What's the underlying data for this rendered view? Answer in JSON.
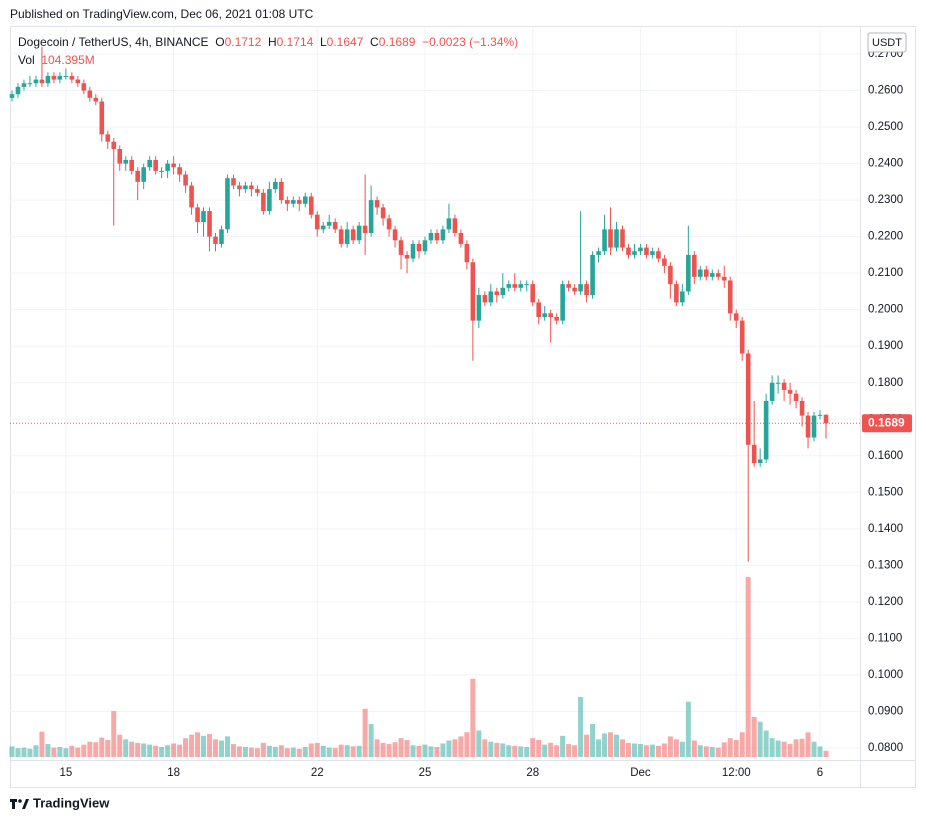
{
  "published": "Published on TradingView.com, Dec 06, 2021 01:08 UTC",
  "footer": "TradingView",
  "chart_data": {
    "type": "candlestick",
    "title": "Dogecoin / TetherUS, 4h, BINANCE",
    "currency": "USDT",
    "ohlc_letters": [
      "O",
      "H",
      "L",
      "C"
    ],
    "change": "−0.0023 (−1.34%)",
    "volume_name": "Vol",
    "volume_label": "104.395M",
    "current_label": "0.1689",
    "up_color": "#26a69a",
    "down_color": "#ef5350",
    "open": [
      0.258,
      0.259,
      0.261,
      0.262,
      0.262,
      0.263,
      0.262,
      0.264,
      0.263,
      0.264,
      0.264,
      0.263,
      0.262,
      0.26,
      0.258,
      0.257,
      0.248,
      0.246,
      0.244,
      0.24,
      0.241,
      0.238,
      0.235,
      0.239,
      0.241,
      0.238,
      0.238,
      0.24,
      0.239,
      0.237,
      0.234,
      0.228,
      0.224,
      0.227,
      0.22,
      0.218,
      0.222,
      0.236,
      0.234,
      0.233,
      0.234,
      0.233,
      0.232,
      0.227,
      0.233,
      0.235,
      0.23,
      0.229,
      0.23,
      0.229,
      0.231,
      0.226,
      0.222,
      0.223,
      0.224,
      0.222,
      0.218,
      0.222,
      0.219,
      0.223,
      0.221,
      0.23,
      0.228,
      0.225,
      0.222,
      0.219,
      0.215,
      0.214,
      0.218,
      0.216,
      0.219,
      0.221,
      0.219,
      0.222,
      0.225,
      0.221,
      0.218,
      0.213,
      0.197,
      0.204,
      0.202,
      0.205,
      0.204,
      0.206,
      0.207,
      0.206,
      0.207,
      0.207,
      0.202,
      0.198,
      0.199,
      0.198,
      0.197,
      0.207,
      0.206,
      0.205,
      0.207,
      0.204,
      0.215,
      0.216,
      0.222,
      0.217,
      0.222,
      0.217,
      0.215,
      0.216,
      0.217,
      0.215,
      0.216,
      0.214,
      0.212,
      0.207,
      0.202,
      0.205,
      0.215,
      0.209,
      0.211,
      0.209,
      0.21,
      0.209,
      0.208,
      0.199,
      0.197,
      0.188,
      0.163,
      0.158,
      0.159,
      0.175,
      0.18,
      0.18,
      0.178,
      0.177,
      0.175,
      0.171,
      0.165,
      0.171,
      0.1712
    ],
    "high": [
      0.26,
      0.262,
      0.263,
      0.264,
      0.264,
      0.272,
      0.265,
      0.265,
      0.265,
      0.266,
      0.265,
      0.264,
      0.263,
      0.261,
      0.259,
      0.258,
      0.249,
      0.247,
      0.245,
      0.242,
      0.242,
      0.239,
      0.24,
      0.242,
      0.242,
      0.239,
      0.241,
      0.242,
      0.24,
      0.238,
      0.235,
      0.229,
      0.228,
      0.228,
      0.221,
      0.223,
      0.237,
      0.237,
      0.235,
      0.235,
      0.235,
      0.234,
      0.233,
      0.235,
      0.236,
      0.236,
      0.231,
      0.231,
      0.231,
      0.232,
      0.232,
      0.227,
      0.224,
      0.226,
      0.225,
      0.223,
      0.224,
      0.223,
      0.224,
      0.237,
      0.234,
      0.231,
      0.229,
      0.226,
      0.223,
      0.22,
      0.216,
      0.219,
      0.219,
      0.22,
      0.222,
      0.222,
      0.223,
      0.229,
      0.226,
      0.222,
      0.219,
      0.214,
      0.206,
      0.205,
      0.207,
      0.206,
      0.21,
      0.208,
      0.21,
      0.208,
      0.208,
      0.208,
      0.203,
      0.201,
      0.2,
      0.199,
      0.208,
      0.208,
      0.207,
      0.227,
      0.208,
      0.216,
      0.217,
      0.226,
      0.228,
      0.224,
      0.223,
      0.218,
      0.218,
      0.218,
      0.218,
      0.217,
      0.217,
      0.215,
      0.213,
      0.208,
      0.207,
      0.223,
      0.216,
      0.212,
      0.212,
      0.211,
      0.211,
      0.212,
      0.209,
      0.2,
      0.198,
      0.189,
      0.175,
      0.162,
      0.177,
      0.182,
      0.182,
      0.181,
      0.18,
      0.178,
      0.176,
      0.172,
      0.172,
      0.1725,
      0.1714
    ],
    "low": [
      0.257,
      0.258,
      0.26,
      0.261,
      0.261,
      0.261,
      0.261,
      0.262,
      0.262,
      0.263,
      0.262,
      0.261,
      0.259,
      0.257,
      0.256,
      0.246,
      0.244,
      0.223,
      0.238,
      0.238,
      0.237,
      0.23,
      0.233,
      0.238,
      0.237,
      0.236,
      0.236,
      0.237,
      0.235,
      0.232,
      0.226,
      0.221,
      0.22,
      0.216,
      0.216,
      0.217,
      0.221,
      0.233,
      0.231,
      0.232,
      0.231,
      0.231,
      0.226,
      0.226,
      0.232,
      0.229,
      0.227,
      0.228,
      0.227,
      0.228,
      0.225,
      0.22,
      0.221,
      0.222,
      0.221,
      0.217,
      0.217,
      0.218,
      0.218,
      0.215,
      0.22,
      0.226,
      0.223,
      0.22,
      0.217,
      0.211,
      0.21,
      0.213,
      0.214,
      0.215,
      0.218,
      0.218,
      0.218,
      0.221,
      0.22,
      0.217,
      0.211,
      0.186,
      0.195,
      0.201,
      0.201,
      0.202,
      0.203,
      0.205,
      0.205,
      0.205,
      0.205,
      0.201,
      0.196,
      0.197,
      0.191,
      0.196,
      0.196,
      0.205,
      0.204,
      0.204,
      0.202,
      0.203,
      0.213,
      0.215,
      0.215,
      0.216,
      0.216,
      0.214,
      0.214,
      0.215,
      0.214,
      0.214,
      0.213,
      0.21,
      0.203,
      0.201,
      0.201,
      0.204,
      0.207,
      0.208,
      0.208,
      0.208,
      0.208,
      0.206,
      0.197,
      0.195,
      0.186,
      0.131,
      0.157,
      0.157,
      0.158,
      0.174,
      0.177,
      0.175,
      0.174,
      0.173,
      0.168,
      0.162,
      0.164,
      0.17,
      0.1647
    ],
    "close": [
      0.259,
      0.261,
      0.262,
      0.262,
      0.263,
      0.262,
      0.264,
      0.263,
      0.264,
      0.264,
      0.263,
      0.262,
      0.26,
      0.258,
      0.257,
      0.248,
      0.246,
      0.244,
      0.24,
      0.241,
      0.238,
      0.235,
      0.239,
      0.241,
      0.238,
      0.238,
      0.24,
      0.239,
      0.237,
      0.234,
      0.228,
      0.224,
      0.227,
      0.22,
      0.218,
      0.222,
      0.236,
      0.234,
      0.233,
      0.234,
      0.233,
      0.232,
      0.227,
      0.233,
      0.235,
      0.23,
      0.229,
      0.23,
      0.229,
      0.231,
      0.226,
      0.222,
      0.223,
      0.224,
      0.222,
      0.218,
      0.222,
      0.219,
      0.223,
      0.221,
      0.23,
      0.228,
      0.225,
      0.222,
      0.219,
      0.215,
      0.214,
      0.218,
      0.216,
      0.219,
      0.221,
      0.219,
      0.222,
      0.225,
      0.221,
      0.218,
      0.213,
      0.197,
      0.204,
      0.202,
      0.205,
      0.204,
      0.206,
      0.207,
      0.206,
      0.207,
      0.207,
      0.202,
      0.198,
      0.199,
      0.198,
      0.197,
      0.207,
      0.206,
      0.205,
      0.207,
      0.204,
      0.215,
      0.216,
      0.222,
      0.217,
      0.222,
      0.217,
      0.215,
      0.216,
      0.217,
      0.215,
      0.216,
      0.214,
      0.212,
      0.207,
      0.202,
      0.205,
      0.215,
      0.209,
      0.211,
      0.209,
      0.21,
      0.209,
      0.208,
      0.199,
      0.197,
      0.188,
      0.163,
      0.158,
      0.159,
      0.175,
      0.18,
      0.18,
      0.178,
      0.177,
      0.175,
      0.171,
      0.165,
      0.171,
      0.1712,
      0.1689
    ],
    "volume": [
      180,
      150,
      160,
      140,
      200,
      430,
      220,
      160,
      170,
      150,
      190,
      160,
      210,
      260,
      250,
      330,
      290,
      780,
      380,
      300,
      260,
      240,
      230,
      210,
      190,
      170,
      200,
      230,
      210,
      320,
      380,
      420,
      360,
      390,
      300,
      280,
      350,
      220,
      180,
      170,
      160,
      150,
      240,
      190,
      170,
      200,
      150,
      160,
      140,
      170,
      230,
      240,
      190,
      160,
      150,
      210,
      200,
      180,
      190,
      820,
      560,
      300,
      240,
      220,
      250,
      320,
      290,
      200,
      190,
      210,
      180,
      170,
      230,
      280,
      300,
      350,
      420,
      1330,
      450,
      300,
      260,
      240,
      230,
      200,
      190,
      180,
      170,
      320,
      290,
      210,
      240,
      200,
      360,
      220,
      200,
      1020,
      380,
      560,
      300,
      400,
      420,
      380,
      300,
      240,
      230,
      220,
      200,
      210,
      190,
      230,
      350,
      300,
      260,
      940,
      280,
      200,
      180,
      170,
      160,
      250,
      320,
      290,
      420,
      3060,
      680,
      600,
      450,
      320,
      280,
      260,
      220,
      300,
      310,
      420,
      260,
      180,
      104.395
    ],
    "ylim": [
      0.0767,
      0.2774
    ],
    "yticks": [
      {
        "value": 0.08,
        "label": "0.0800"
      },
      {
        "value": 0.09,
        "label": "0.0900"
      },
      {
        "value": 0.1,
        "label": "0.1000"
      },
      {
        "value": 0.11,
        "label": "0.1100"
      },
      {
        "value": 0.12,
        "label": "0.1200"
      },
      {
        "value": 0.13,
        "label": "0.1300"
      },
      {
        "value": 0.14,
        "label": "0.1400"
      },
      {
        "value": 0.15,
        "label": "0.1500"
      },
      {
        "value": 0.16,
        "label": "0.1600"
      },
      {
        "value": 0.17,
        "label": "0.1700"
      },
      {
        "value": 0.18,
        "label": "0.1800"
      },
      {
        "value": 0.19,
        "label": "0.1900"
      },
      {
        "value": 0.2,
        "label": "0.2000"
      },
      {
        "value": 0.21,
        "label": "0.2100"
      },
      {
        "value": 0.22,
        "label": "0.2200"
      },
      {
        "value": 0.23,
        "label": "0.2300"
      },
      {
        "value": 0.24,
        "label": "0.2400"
      },
      {
        "value": 0.25,
        "label": "0.2500"
      },
      {
        "value": 0.26,
        "label": "0.2600"
      },
      {
        "value": 0.27,
        "label": "0.2700"
      }
    ],
    "xticks": [
      {
        "value": 9,
        "label": "15"
      },
      {
        "value": 27,
        "label": "18"
      },
      {
        "value": 51,
        "label": "22"
      },
      {
        "value": 69,
        "label": "25"
      },
      {
        "value": 87,
        "label": "28"
      },
      {
        "value": 105,
        "label": "Dec"
      },
      {
        "value": 121,
        "label": "12:00"
      },
      {
        "value": 135,
        "label": "6"
      }
    ],
    "grid": true
  }
}
